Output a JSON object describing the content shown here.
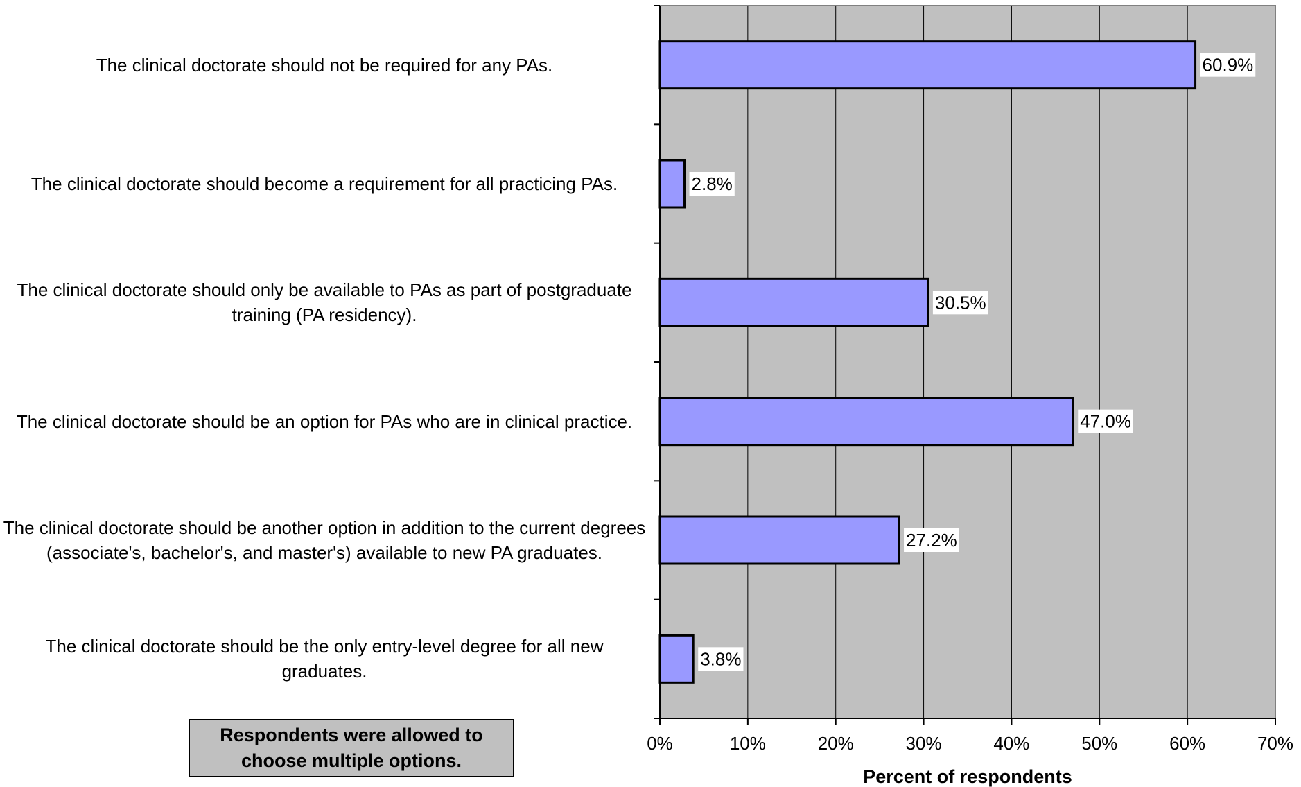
{
  "colors": {
    "plot_background": "#c0c0c0",
    "bar_fill": "#9999ff",
    "bar_stroke": "#000000",
    "note_background": "#c0c0c0",
    "gridline": "#000000",
    "label_background": "#ffffff"
  },
  "note": "Respondents were allowed to choose multiple options.",
  "chart_data": {
    "type": "bar",
    "orientation": "horizontal",
    "title": "",
    "xlabel": "Percent of respondents",
    "ylabel": "",
    "xlim": [
      0,
      70
    ],
    "x_ticks": [
      0,
      10,
      20,
      30,
      40,
      50,
      60,
      70
    ],
    "x_tick_labels": [
      "0%",
      "10%",
      "20%",
      "30%",
      "40%",
      "50%",
      "60%",
      "70%"
    ],
    "grid": "vertical",
    "legend": "none",
    "categories": [
      "The clinical doctorate should not be required for any PAs.",
      "The clinical doctorate should become a requirement for all practicing PAs.",
      "The clinical doctorate should only be available to PAs as part of postgraduate training (PA residency).",
      "The clinical doctorate should be an option for PAs who are in clinical practice.",
      "The clinical doctorate should be another option in addition to the current degrees (associate's, bachelor's, and master's) available to new PA graduates.",
      "The clinical doctorate should be the only entry-level degree for all new graduates."
    ],
    "values": [
      60.9,
      2.8,
      30.5,
      47.0,
      27.2,
      3.8
    ],
    "data_labels": [
      "60.9%",
      "2.8%",
      "30.5%",
      "47.0%",
      "27.2%",
      "3.8%"
    ]
  }
}
